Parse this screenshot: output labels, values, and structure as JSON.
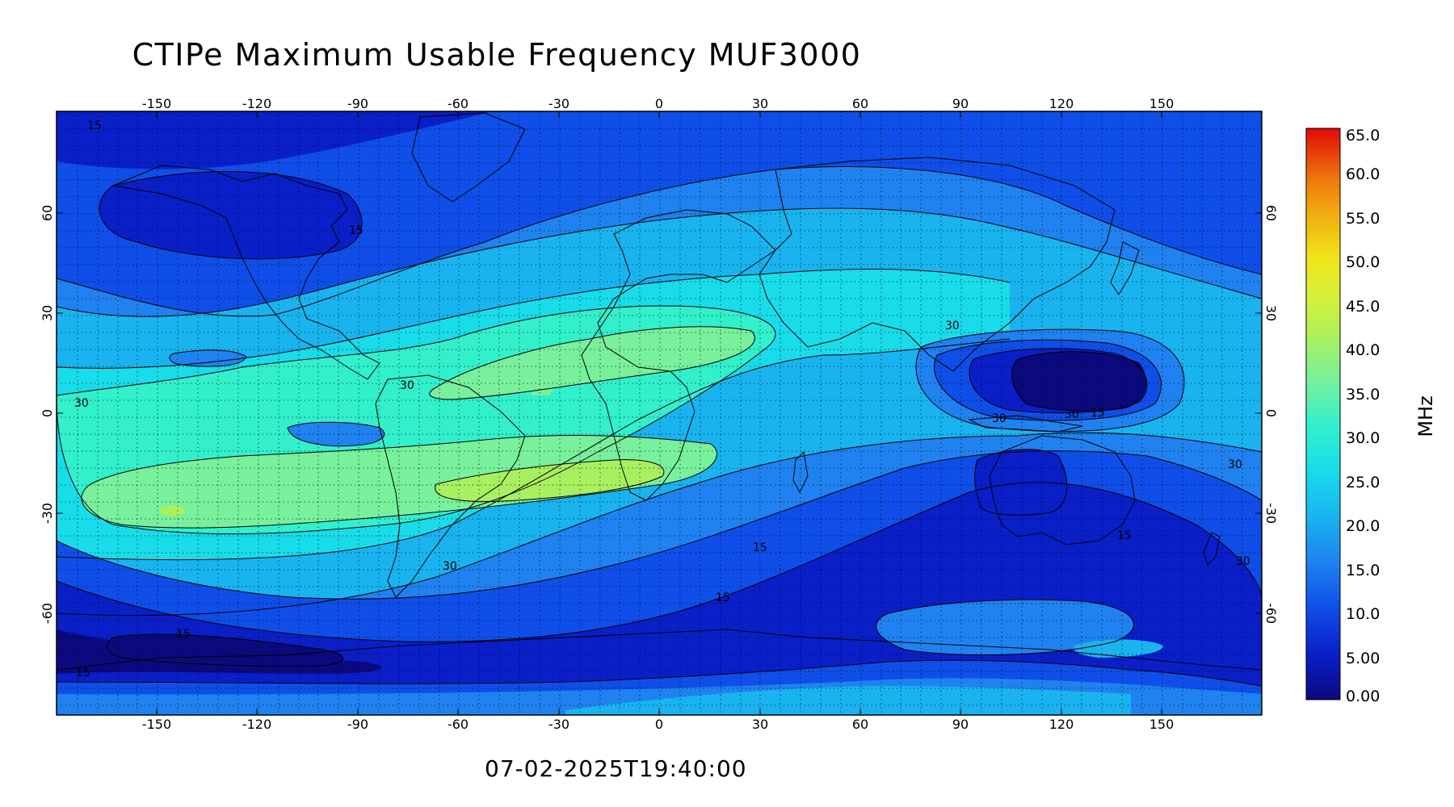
{
  "title": "CTIPe Maximum Usable Frequency MUF3000",
  "timestamp": "07-02-2025T19:40:00",
  "colorbar": {
    "unit": "MHz",
    "labels": [
      "65.0",
      "60.0",
      "55.0",
      "50.0",
      "45.0",
      "40.0",
      "35.0",
      "30.0",
      "25.0",
      "20.0",
      "15.0",
      "10.0",
      "5.00",
      "0.00"
    ],
    "colors": [
      "#0a0a7e",
      "#0a1fc8",
      "#0f4ee8",
      "#1f82f0",
      "#19b4f0",
      "#19dcea",
      "#32f0cc",
      "#78f09c",
      "#a8f060",
      "#d4f03c",
      "#f0e619",
      "#f0b412",
      "#f0780c",
      "#e63c08",
      "#e00a0a"
    ]
  },
  "axes": {
    "lon_ticks": [
      "-150",
      "-120",
      "-90",
      "-60",
      "-30",
      "0",
      "30",
      "60",
      "90",
      "120",
      "150"
    ],
    "lat_ticks": [
      "60",
      "30",
      "0",
      "-30",
      "-60"
    ]
  },
  "contour_labels": [
    "15",
    "15",
    "30",
    "30",
    "30",
    "30",
    "30",
    "15",
    "15",
    "30",
    "15",
    "15",
    "15",
    "30",
    "30",
    "15"
  ],
  "map": {
    "background_color": "#1f82f0",
    "level_colors": {
      "lvl5": "#0a0a7e",
      "lvl10": "#0a1fc8",
      "lvl15": "#0f4ee8",
      "lvl20": "#1f82f0",
      "lvl25": "#19b4f0",
      "lvl30": "#19dcea",
      "lvl35": "#32f0cc",
      "lvl40": "#78f09c",
      "lvl45": "#a8f060"
    }
  }
}
